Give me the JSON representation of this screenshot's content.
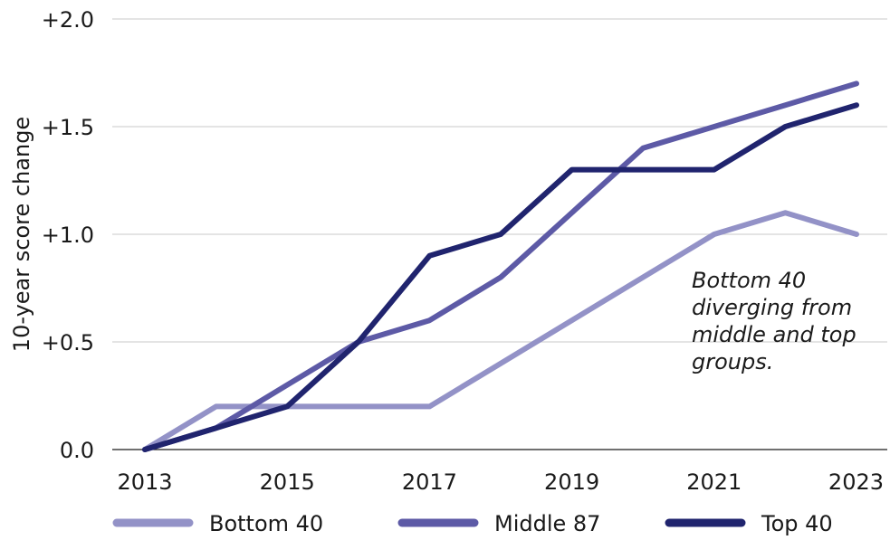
{
  "chart_data": {
    "type": "line",
    "ylabel": "10-year score change",
    "x": [
      2013,
      2014,
      2015,
      2016,
      2017,
      2018,
      2019,
      2020,
      2021,
      2022,
      2023
    ],
    "x_ticks": [
      "2013",
      "2015",
      "2017",
      "2019",
      "2021",
      "2023"
    ],
    "y_ticks": [
      "0.0",
      "+0.5",
      "+1.0",
      "+1.5",
      "+2.0"
    ],
    "ylim": [
      0,
      2.0
    ],
    "grid": true,
    "legend_position": "bottom",
    "series": [
      {
        "name": "Bottom 40",
        "color": "#9392c7",
        "values": [
          0.0,
          0.2,
          0.2,
          0.2,
          0.2,
          0.4,
          0.6,
          0.8,
          1.0,
          1.1,
          1.0
        ]
      },
      {
        "name": "Middle 87",
        "color": "#5d5aa6",
        "values": [
          0.0,
          0.1,
          0.3,
          0.5,
          0.6,
          0.8,
          1.1,
          1.4,
          1.5,
          1.6,
          1.7
        ]
      },
      {
        "name": "Top 40",
        "color": "#20246e",
        "values": [
          0.0,
          0.1,
          0.2,
          0.5,
          0.9,
          1.0,
          1.3,
          1.3,
          1.3,
          1.5,
          1.6
        ]
      }
    ],
    "annotation": [
      "Bottom 40",
      "diverging from",
      "middle and top",
      "groups."
    ]
  }
}
